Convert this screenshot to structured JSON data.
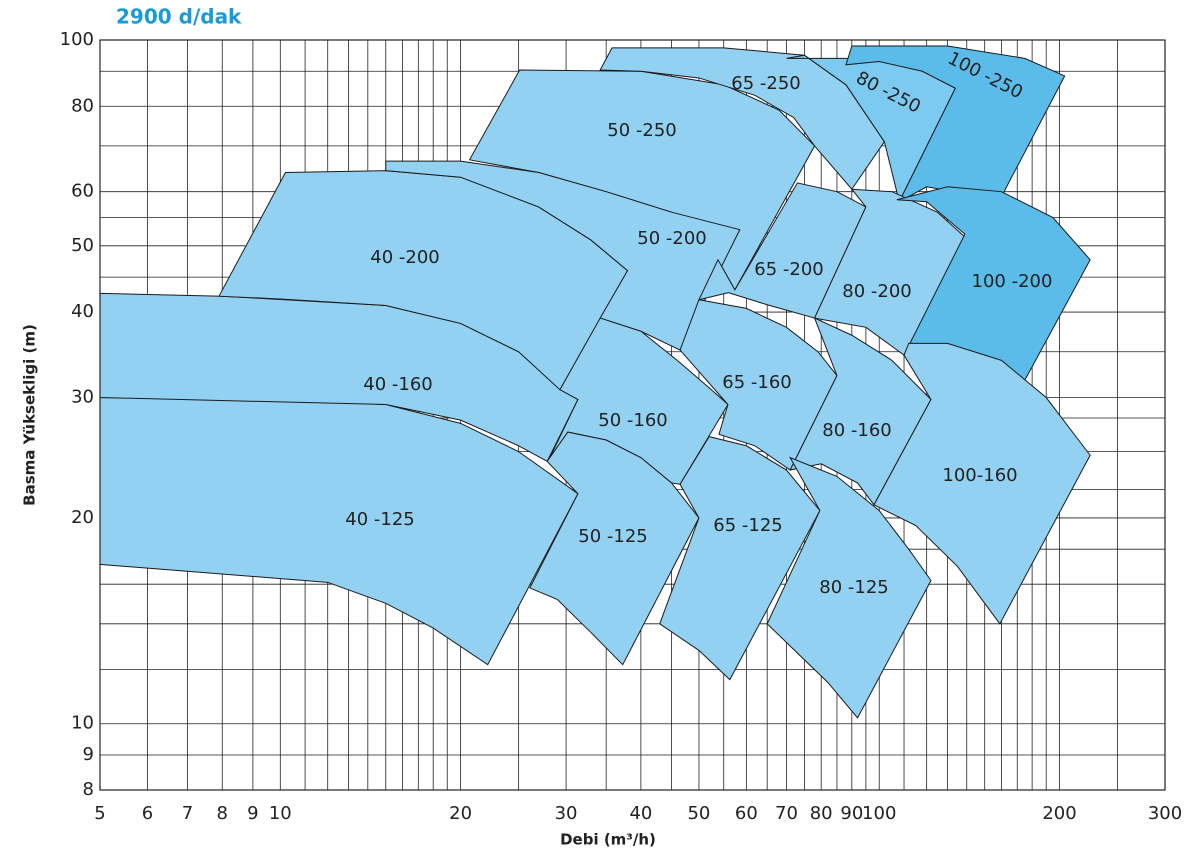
{
  "chart_data": {
    "type": "region",
    "title": "2900 d/dak",
    "x_label": "Debi (m³/h)",
    "y_label": "Basma Yüksekligi (m)",
    "xscale": "log",
    "yscale": "log",
    "grid": true,
    "xlim": [
      5,
      300
    ],
    "ylim": [
      8,
      100
    ],
    "xticks": [
      5,
      6,
      7,
      8,
      9,
      10,
      20,
      30,
      40,
      50,
      60,
      70,
      80,
      90,
      100,
      200,
      300
    ],
    "yticks": [
      8,
      9,
      10,
      20,
      30,
      40,
      50,
      60,
      80,
      100
    ],
    "xgrid": [
      11,
      12,
      13,
      14,
      15,
      16,
      17,
      18,
      19,
      25,
      35,
      45,
      55,
      65,
      75,
      85,
      95,
      110,
      120,
      130,
      140,
      150,
      160,
      170,
      180,
      190,
      250
    ],
    "ygrid": [
      12,
      14,
      16,
      18,
      22,
      25,
      28,
      35,
      45,
      55,
      70,
      90
    ],
    "regions": [
      {
        "name": "40 -125",
        "color": "#93d1f2",
        "x": [
          5,
          10,
          15,
          20,
          25,
          31.4,
          22.2,
          18,
          15,
          12,
          5
        ],
        "y": [
          30,
          29.8,
          29.3,
          27.5,
          25,
          21.7,
          12.2,
          13.8,
          15,
          16.1,
          17.1
        ]
      },
      {
        "name": "40 -160",
        "color": "#93d1f2",
        "x": [
          5,
          8,
          15,
          20,
          25,
          28,
          31.4,
          27.9,
          25,
          20,
          15,
          5
        ],
        "y": [
          42.6,
          42.2,
          40.9,
          38.5,
          35,
          32,
          29.8,
          24.2,
          25.5,
          27.8,
          29.3,
          30
        ]
      },
      {
        "name": "40 -200",
        "color": "#93d1f2",
        "x": [
          7.9,
          10.2,
          15,
          20,
          27,
          33,
          38,
          29.3,
          25,
          20,
          15,
          10
        ],
        "y": [
          42.2,
          64,
          64.4,
          63,
          57,
          51,
          46,
          30.8,
          35,
          38.5,
          40.9,
          41.8
        ]
      },
      {
        "name": "50 -250",
        "color": "#93d1f2",
        "x": [
          20.7,
          25.1,
          40,
          55,
          68,
          78,
          57.4,
          53.8,
          45,
          35,
          27
        ],
        "y": [
          66.8,
          90.4,
          90,
          86,
          79,
          70,
          43.1,
          47.7,
          56,
          60,
          64
        ]
      },
      {
        "name": "50 -200",
        "color": "#93d1f2",
        "x": [
          15,
          20,
          27,
          35,
          45,
          58.5,
          46.5,
          40,
          34.2,
          38,
          33,
          27,
          20,
          15
        ],
        "y": [
          66.5,
          66.5,
          64,
          60,
          56,
          52.8,
          35.2,
          37.5,
          39.2,
          46,
          51,
          57,
          63,
          64.4
        ]
      },
      {
        "name": "50 -160",
        "color": "#93d1f2",
        "x": [
          29.3,
          34.2,
          40,
          46,
          52,
          55.9,
          46.5,
          45,
          40,
          35,
          30.2,
          28,
          31.4
        ],
        "y": [
          30.8,
          39.2,
          37.5,
          34,
          31,
          29.3,
          22.4,
          22.5,
          24.5,
          26,
          26.7,
          24.2,
          29.8
        ]
      },
      {
        "name": "50 -125",
        "color": "#93d1f2",
        "x": [
          27.9,
          30.2,
          35,
          40,
          45,
          50,
          37.3,
          33,
          29,
          26.1,
          31.4
        ],
        "y": [
          24.2,
          26.7,
          26,
          24.5,
          22.5,
          20,
          12.2,
          13.6,
          15.2,
          15.8,
          21.7
        ]
      },
      {
        "name": "65 -250",
        "color": "#93d1f2",
        "x": [
          34.2,
          35.8,
          55,
          75,
          88,
          102,
          90,
          78,
          72,
          62,
          50,
          40
        ],
        "y": [
          90.4,
          97.4,
          97.4,
          95,
          86,
          71,
          60.5,
          70,
          77,
          83,
          88,
          90
        ]
      },
      {
        "name": "80 -250",
        "color": "#7ccaf0",
        "x": [
          70,
          100,
          120,
          134,
          108,
          102,
          88,
          75
        ],
        "y": [
          94,
          94,
          90,
          85,
          58,
          71,
          86,
          95
        ]
      },
      {
        "name": "100 -250",
        "color": "#5bbbe9",
        "x": [
          88,
          90,
          130,
          175,
          204,
          159,
          120,
          108,
          134,
          118,
          100
        ],
        "y": [
          92,
          98,
          98,
          94,
          88.6,
          58.4,
          61,
          58,
          85,
          90,
          93
        ]
      },
      {
        "name": "65 -200",
        "color": "#93d1f2",
        "x": [
          53.8,
          57.4,
          73,
          85,
          95,
          78,
          65,
          56,
          50
        ],
        "y": [
          47.7,
          43.1,
          61.8,
          60,
          57,
          39.2,
          41,
          42.7,
          41.7
        ]
      },
      {
        "name": "80 -200",
        "color": "#93d1f2",
        "x": [
          90,
          105,
          125,
          139,
          110,
          95,
          78,
          95
        ],
        "y": [
          60.5,
          60,
          56,
          51.5,
          34.6,
          38,
          39.2,
          57
        ]
      },
      {
        "name": "100  -200",
        "color": "#5bbbe9",
        "x": [
          107,
          130,
          160,
          195,
          225,
          175,
          145,
          120,
          110,
          139,
          120
        ],
        "y": [
          58.4,
          61,
          60,
          55,
          47.7,
          31.8,
          34,
          35.5,
          34.6,
          52,
          58
        ]
      },
      {
        "name": "65 -160",
        "color": "#93d1f2",
        "x": [
          46.5,
          50,
          60,
          70,
          79,
          85,
          71,
          62,
          54,
          55.9
        ],
        "y": [
          35.2,
          41.7,
          40.5,
          38,
          35,
          32.3,
          23.5,
          25.5,
          26.5,
          29.3
        ]
      },
      {
        "name": "80 -160",
        "color": "#93d1f2",
        "x": [
          78,
          90,
          105,
          122,
          98,
          92,
          80,
          71,
          85
        ],
        "y": [
          39.2,
          37,
          34,
          29.8,
          20.9,
          22.5,
          24,
          23.5,
          32.3
        ]
      },
      {
        "name": "100-160",
        "color": "#93d1f2",
        "x": [
          112,
          130,
          160,
          190,
          225,
          159,
          135,
          115,
          98,
          122,
          110
        ],
        "y": [
          36,
          36,
          34,
          30,
          24.7,
          14,
          17,
          19.5,
          20.9,
          29.8,
          34.6
        ]
      },
      {
        "name": "65 -125",
        "color": "#93d1f2",
        "x": [
          52,
          60,
          70,
          79.6,
          56.3,
          50,
          43,
          50,
          46.5
        ],
        "y": [
          26.3,
          25.5,
          23.5,
          20.5,
          11.6,
          12.8,
          14,
          20,
          22.4
        ]
      },
      {
        "name": "80 -125",
        "color": "#93d1f2",
        "x": [
          71,
          85,
          100,
          112,
          122,
          92,
          82,
          65,
          79.6
        ],
        "y": [
          24.5,
          23,
          20.5,
          18,
          16.2,
          10.2,
          11.5,
          14,
          20.5
        ]
      }
    ]
  }
}
